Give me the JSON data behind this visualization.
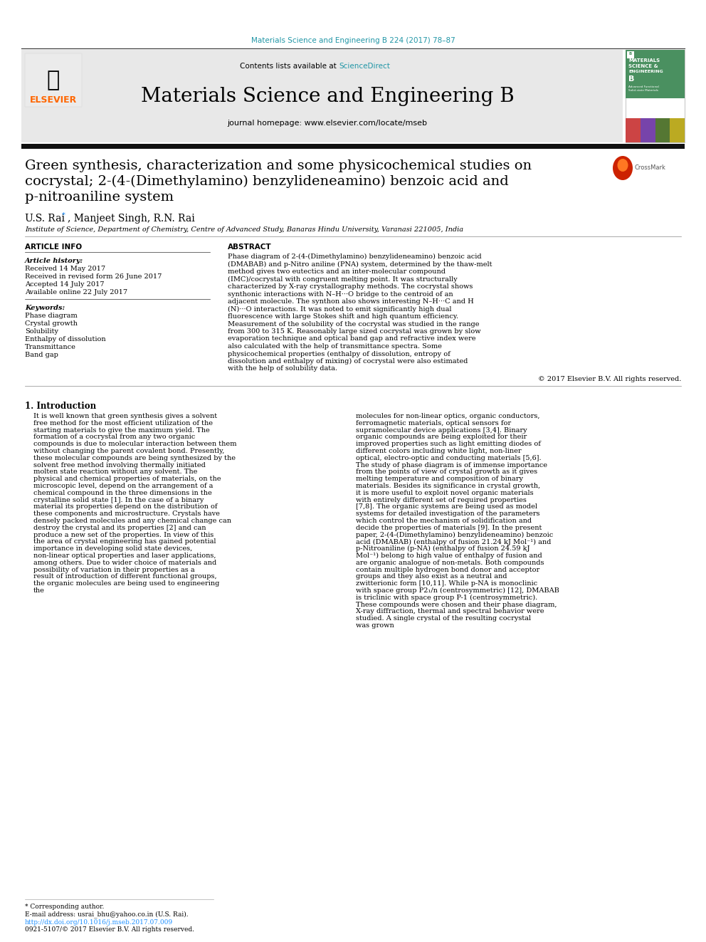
{
  "bg_color": "#ffffff",
  "top_citation": "Materials Science and Engineering B 224 (2017) 78–87",
  "top_citation_color": "#2196a6",
  "header_bg": "#e8e8e8",
  "header_text1": "Contents lists available at ",
  "header_sciencedirect": "ScienceDirect",
  "header_sciencedirect_color": "#2196a6",
  "journal_title": "Materials Science and Engineering B",
  "journal_homepage": "journal homepage: www.elsevier.com/locate/mseb",
  "black_bar_color": "#111111",
  "paper_title_line1": "Green synthesis, characterization and some physicochemical studies on",
  "paper_title_line2": "cocrystal; 2-(4-(Dimethylamino) benzylideneamino) benzoic acid and",
  "paper_title_line3": "p-nitroaniline system",
  "authors_main": "U.S. Rai",
  "authors_star": "*",
  "authors_rest": ", Manjeet Singh, R.N. Rai",
  "affiliation": "Institute of Science, Department of Chemistry, Centre of Advanced Study, Banaras Hindu University, Varanasi 221005, India",
  "article_info_header": "ARTICLE INFO",
  "abstract_header": "ABSTRACT",
  "article_history_label": "Article history:",
  "received1": "Received 14 May 2017",
  "received2": "Received in revised form 26 June 2017",
  "accepted": "Accepted 14 July 2017",
  "available": "Available online 22 July 2017",
  "keywords_label": "Keywords:",
  "keywords": [
    "Phase diagram",
    "Crystal growth",
    "Solubility",
    "Enthalpy of dissolution",
    "Transmittance",
    "Band gap"
  ],
  "abstract_text": "Phase diagram of 2-(4-(Dimethylamino) benzylideneamino) benzoic acid (DMABAB) and p-Nitro aniline (PNA) system, determined by the thaw-melt method gives two eutectics and an inter-molecular compound (IMC)/cocrystal with congruent melting point. It was structurally characterized by X-ray crystallography methods. The cocrystal shows synthonic interactions with N–H···O bridge to the centroid of an adjacent molecule. The synthon also shows interesting N–H···C and H (N)···O interactions. It was noted to emit significantly high dual fluorescence with large Stokes shift and high quantum efficiency. Measurement of the solubility of the cocrystal was studied in the range from 300 to 315 K. Reasonably large sized cocrystal was grown by slow evaporation technique and optical band gap and refractive index were also calculated with the help of transmittance spectra. Some physicochemical properties (enthalpy of dissolution, entropy of dissolution and enthalpy of mixing) of cocrystal were also estimated with the help of solubility data.",
  "copyright": "© 2017 Elsevier B.V. All rights reserved.",
  "intro_header": "1. Introduction",
  "intro_col1": "It is well known that green synthesis gives a solvent free method for the most efficient utilization of the starting materials to give the maximum yield. The formation of a cocrystal from any two organic compounds is due to molecular interaction between them without changing the parent covalent bond. Presently, these molecular compounds are being synthesized by the solvent free method involving thermally initiated molten state reaction without any solvent. The physical and chemical properties of materials, on the microscopic level, depend on the arrangement of a chemical compound in the three dimensions in the crystalline solid state [1]. In the case of a binary material its properties depend on the distribution of these components and microstructure. Crystals have densely packed molecules and any chemical change can destroy the crystal and its properties [2] and can produce a new set of the properties. In view of this the area of crystal engineering has gained potential importance in developing solid state devices, non-linear optical properties and laser applications, among others. Due to wider choice of materials and possibility of variation in their properties as a result of introduction of different functional groups, the organic molecules are being used to engineering the",
  "intro_col2": "molecules for non-linear optics, organic conductors, ferromagnetic materials, optical sensors for supramolecular device applications [3,4]. Binary organic compounds are being exploited for their improved properties such as light emitting diodes of different colors including white light, non-liner optical, electro-optic and conducting materials [5,6]. The study of phase diagram is of immense importance from the points of view of crystal growth as it gives melting temperature and composition of binary materials. Besides its significance in crystal growth, it is more useful to exploit novel organic materials with entirely different set of required properties [7,8]. The organic systems are being used as model systems for detailed investigation of the parameters which control the mechanism of solidification and decide the properties of materials [9].\n    In the present paper, 2-(4-(Dimethylamino) benzylideneamino) benzoic acid (DMABAB) (enthalpy of fusion 21.24 kJ Mol⁻¹) and p-Nitroaniline (p-NA) (enthalpy of fusion 24.59 kJ Mol⁻¹) belong to high value of enthalpy of fusion and are organic analogue of non-metals. Both compounds contain multiple hydrogen bond donor and acceptor groups and they also exist as a neutral and zwitterionic form [10,11]. While p-NA is monoclinic with space group P2₁/n (centrosymmetric) [12], DMABAB is triclinic with space group P-1 (centrosymmetric). These compounds were chosen and their phase diagram, X-ray diffraction, thermal and spectral behavior were studied. A single crystal of the resulting cocrystal was grown",
  "footnote_star": "* Corresponding author.",
  "footnote_email": "E-mail address: usrai_bhu@yahoo.co.in (U.S. Rai).",
  "footnote_doi": "http://dx.doi.org/10.1016/j.mseb.2017.07.009",
  "footnote_issn": "0921-5107/© 2017 Elsevier B.V. All rights reserved.",
  "elsevier_color": "#FF6600",
  "cover_green": "#4a9060",
  "cover_colors": [
    "#cc4444",
    "#8844aa",
    "#44aa44",
    "#aaaa22"
  ],
  "fig_width": 9.92,
  "fig_height": 13.23,
  "dpi": 100
}
